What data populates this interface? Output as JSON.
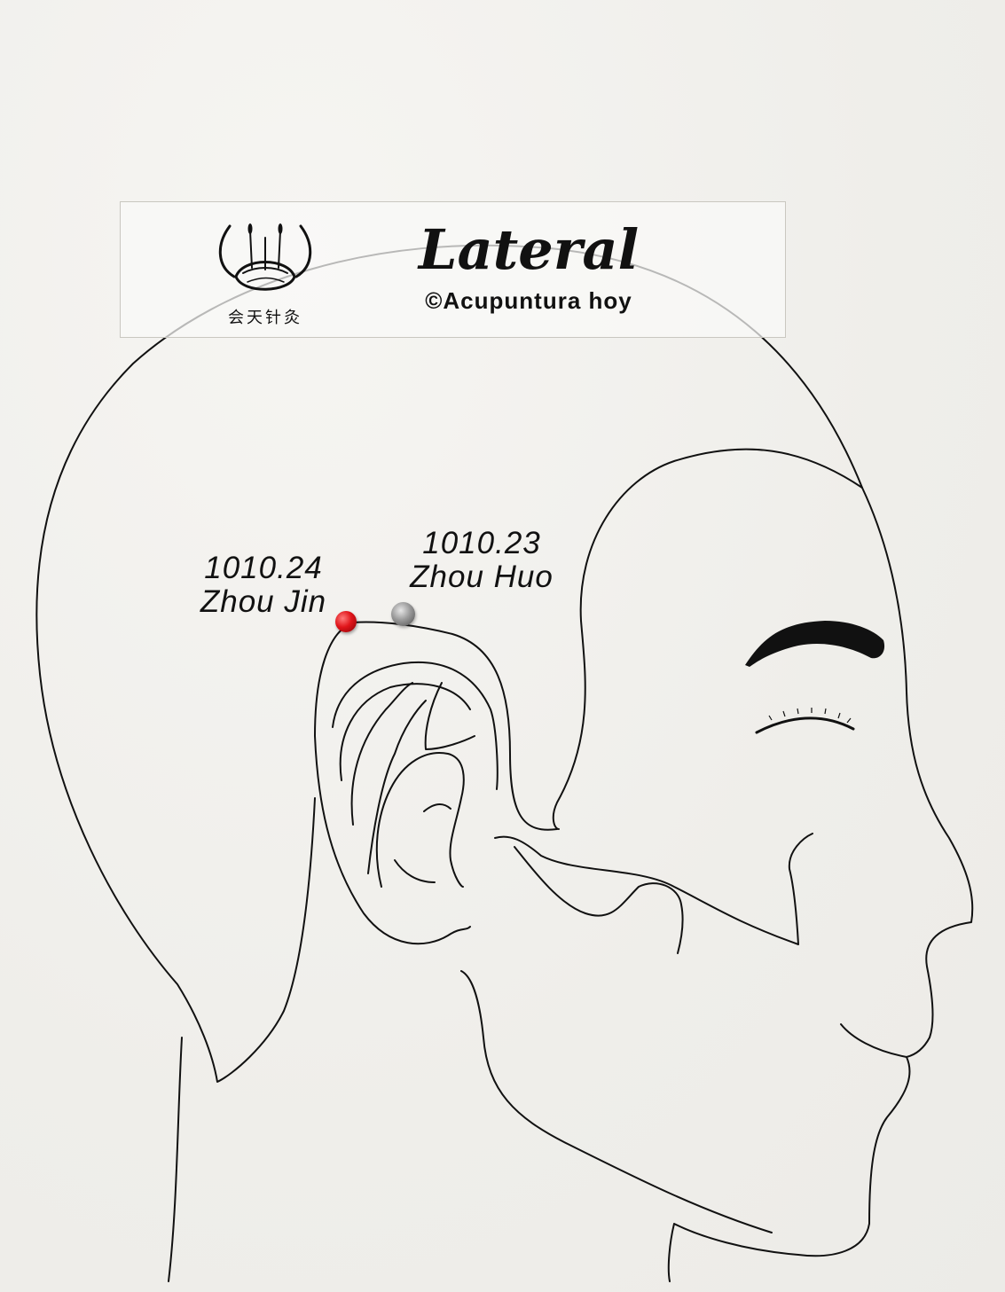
{
  "header": {
    "title": "Lateral",
    "copyright": "©Acupuntura hoy",
    "logo_caption": "会天针灸"
  },
  "points": [
    {
      "code": "1010.24",
      "name": "Zhou Jin",
      "color": "#e0151a"
    },
    {
      "code": "1010.23",
      "name": "Zhou Huo",
      "color": "#8c8c8c"
    }
  ],
  "colors": {
    "background": "#f2f1ee",
    "line": "#111111"
  }
}
